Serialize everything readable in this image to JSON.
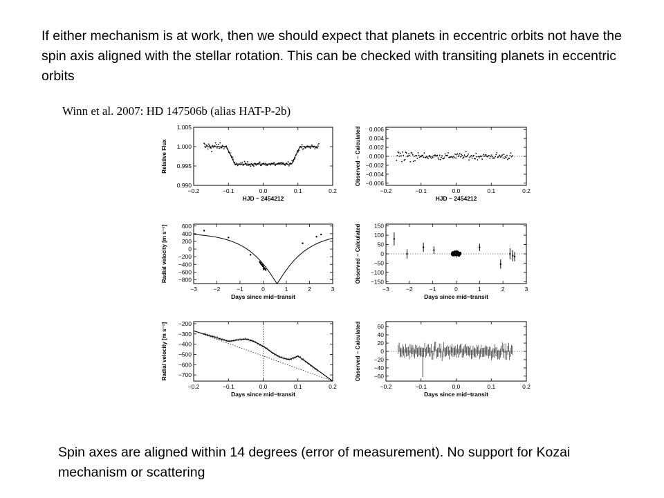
{
  "intro_text": "If either mechanism is at work, then we should expect that planets in eccentric orbits not have the spin axis aligned with the stellar rotation. This can be checked with transiting planets in eccentric orbits",
  "citation": "Winn et al. 2007: HD 147506b (alias HAT-P-2b)",
  "conclusion_text": "Spin axes are aligned within 14 degrees (error of measurement). No support for Kozai mechanism or scattering",
  "chart_data": [
    {
      "id": "flux",
      "type": "scatter",
      "xlabel": "HJD − 2454212",
      "ylabel": "Relative Flux",
      "xlim": [
        -0.2,
        0.2
      ],
      "ylim": [
        0.99,
        1.005
      ],
      "xticks": [
        -0.2,
        -0.1,
        0.0,
        0.1,
        0.2
      ],
      "xtick_labels": [
        "−0.2",
        "−0.1",
        "0.0",
        "0.1",
        "0.2"
      ],
      "yticks": [
        0.99,
        0.995,
        1.0,
        1.005
      ],
      "ytick_labels": [
        "0.990",
        "0.995",
        "1.000",
        "1.005"
      ],
      "model": {
        "x": [
          -0.17,
          -0.106,
          -0.092,
          -0.082,
          0.082,
          0.092,
          0.106,
          0.16
        ],
        "y": [
          1.0,
          1.0,
          0.9975,
          0.9955,
          0.9955,
          0.9975,
          1.0,
          1.0
        ]
      },
      "data_range": [
        -0.17,
        0.16
      ],
      "baseline": 1.0,
      "transit_depth": 0.0045
    },
    {
      "id": "flux_resid",
      "type": "scatter",
      "xlabel": "HJD − 2454212",
      "ylabel": "Observed − Calculated",
      "xlim": [
        -0.2,
        0.2
      ],
      "ylim": [
        -0.0065,
        0.0065
      ],
      "xticks": [
        -0.2,
        -0.1,
        0.0,
        0.1,
        0.2
      ],
      "xtick_labels": [
        "−0.2",
        "−0.1",
        "0.0",
        "0.1",
        "0.2"
      ],
      "yticks": [
        -0.006,
        -0.004,
        -0.002,
        0.0,
        0.002,
        0.004,
        0.006
      ],
      "ytick_labels": [
        "−0.006",
        "−0.004",
        "−0.002",
        "0.000",
        "0.002",
        "0.004",
        "0.006"
      ],
      "zero_line": true,
      "data_range": [
        -0.17,
        0.16
      ]
    },
    {
      "id": "rv",
      "type": "line",
      "xlabel": "Days since mid−transit",
      "ylabel": "Radial velocity [m s⁻¹]",
      "xlim": [
        -3,
        3
      ],
      "ylim": [
        -900,
        650
      ],
      "xticks": [
        -3,
        -2,
        -1,
        0,
        1,
        2,
        3
      ],
      "xtick_labels": [
        "−3",
        "−2",
        "−1",
        "0",
        "1",
        "2",
        "3"
      ],
      "yticks": [
        -800,
        -600,
        -400,
        -200,
        0,
        200,
        400,
        600
      ],
      "ytick_labels": [
        "−800",
        "−600",
        "−400",
        "−200",
        "0",
        "200",
        "400",
        "600"
      ],
      "model_periastron_day": 0.6,
      "model_min": -900,
      "model_max": 420,
      "points": [
        {
          "x": -2.55,
          "y": 480,
          "err": 20
        },
        {
          "x": -1.5,
          "y": 300,
          "err": 15
        },
        {
          "x": -0.55,
          "y": -150,
          "err": 15
        },
        {
          "x": -0.02,
          "y": -420,
          "err": 40
        },
        {
          "x": 0.02,
          "y": -520,
          "err": 40
        },
        {
          "x": 1.7,
          "y": 150,
          "err": 15
        },
        {
          "x": 2.3,
          "y": 320,
          "err": 20
        },
        {
          "x": 2.5,
          "y": 380,
          "err": 20
        }
      ]
    },
    {
      "id": "rv_resid",
      "type": "scatter",
      "xlabel": "Days since mid−transit",
      "ylabel": "Observed − Calculated",
      "xlim": [
        -3,
        3
      ],
      "ylim": [
        -160,
        160
      ],
      "xticks": [
        -3,
        -2,
        -1,
        0,
        1,
        2,
        3
      ],
      "xtick_labels": [
        "−3",
        "−2",
        "−1",
        "0",
        "1",
        "2",
        "3"
      ],
      "yticks": [
        -150,
        -100,
        -50,
        0,
        50,
        100,
        150
      ],
      "ytick_labels": [
        "−150",
        "−100",
        "−50",
        "0",
        "50",
        "100",
        "150"
      ],
      "zero_line": true,
      "points": [
        {
          "x": -2.65,
          "y": 80,
          "err": 35
        },
        {
          "x": -2.1,
          "y": 0,
          "err": 25
        },
        {
          "x": -1.4,
          "y": 35,
          "err": 25
        },
        {
          "x": -0.95,
          "y": 20,
          "err": 20
        },
        {
          "x": 0.0,
          "y": 0,
          "err": 20
        },
        {
          "x": 1.0,
          "y": 35,
          "err": 20
        },
        {
          "x": 1.9,
          "y": -55,
          "err": 25
        },
        {
          "x": 2.3,
          "y": 0,
          "err": 30
        },
        {
          "x": 2.42,
          "y": -10,
          "err": 30
        },
        {
          "x": 2.5,
          "y": -15,
          "err": 25
        }
      ]
    },
    {
      "id": "rm",
      "type": "line",
      "xlabel": "Days since mid−transit",
      "ylabel": "Radial velocity [m s⁻¹]",
      "xlim": [
        -0.2,
        0.2
      ],
      "ylim": [
        -760,
        -180
      ],
      "xticks": [
        -0.2,
        -0.1,
        0.0,
        0.1,
        0.2
      ],
      "xtick_labels": [
        "−0.2",
        "−0.1",
        "0.0",
        "0.1",
        "0.2"
      ],
      "yticks": [
        -700,
        -600,
        -500,
        -400,
        -300,
        -200
      ],
      "ytick_labels": [
        "−700",
        "−600",
        "−500",
        "−400",
        "−300",
        "−200"
      ],
      "trend": {
        "x": [
          -0.2,
          0.2
        ],
        "y": [
          -270,
          -760
        ]
      },
      "model": {
        "x": [
          -0.2,
          -0.1,
          -0.075,
          -0.05,
          -0.025,
          0.0,
          0.025,
          0.05,
          0.075,
          0.1,
          0.2
        ],
        "y": [
          -270,
          -372,
          -360,
          -350,
          -375,
          -420,
          -480,
          -530,
          -550,
          -515,
          -760
        ]
      },
      "vline_x": 0.0
    },
    {
      "id": "rm_resid",
      "type": "scatter",
      "xlabel": "Days since mid−transit",
      "ylabel": "Observed − Calculated",
      "xlim": [
        -0.2,
        0.2
      ],
      "ylim": [
        -72,
        72
      ],
      "xticks": [
        -0.2,
        -0.1,
        0.0,
        0.1,
        0.2
      ],
      "xtick_labels": [
        "−0.2",
        "−0.1",
        "0.0",
        "0.1",
        "0.2"
      ],
      "yticks": [
        -60,
        -40,
        -20,
        0,
        20,
        40,
        60
      ],
      "ytick_labels": [
        "−60",
        "−40",
        "−20",
        "0",
        "20",
        "40",
        "60"
      ],
      "zero_line": true,
      "data_range": [
        -0.165,
        0.16
      ]
    }
  ]
}
